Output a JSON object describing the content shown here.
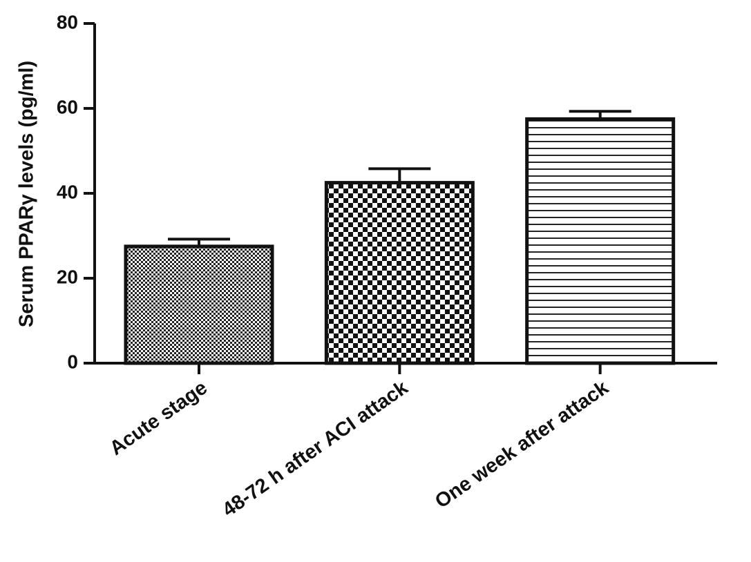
{
  "chart_data": {
    "type": "bar",
    "categories": [
      "Acute stage",
      "48-72 h after ACI attack",
      "One week after attack"
    ],
    "values": [
      27.5,
      42.5,
      57.5
    ],
    "errors": [
      1.7,
      3.3,
      1.8
    ],
    "ylabel": "Serum PPARγ levels (pg/ml)",
    "xlabel": "",
    "ylim": [
      0,
      80
    ],
    "yticks": [
      0,
      20,
      40,
      60,
      80
    ],
    "patterns": [
      "fine-dots",
      "checker",
      "horizontal-lines"
    ],
    "grid": false
  }
}
